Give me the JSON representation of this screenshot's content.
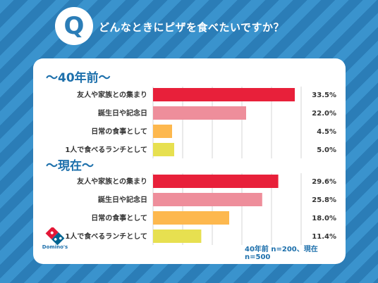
{
  "header": {
    "q_letter": "Q",
    "question": "どんなときにピザを食べたいですか？"
  },
  "sections": [
    {
      "title": "〜40年前〜"
    },
    {
      "title": "〜現在〜"
    }
  ],
  "footnote": "40年前 n=200、現在 n=500",
  "logo": {
    "text": "Domino's",
    "colors": {
      "red": "#e31837",
      "blue": "#006491"
    }
  },
  "colors": {
    "bar_red": "#e8203a",
    "bar_pink": "#ee8e9b",
    "bar_orange": "#fdb84e",
    "bar_yellow": "#e7e050",
    "accent_blue": "#1c6fab"
  },
  "chart_data": [
    {
      "type": "bar",
      "orientation": "horizontal",
      "title": "〜40年前〜",
      "categories": [
        "友人や家族との集まり",
        "誕生日や記念日",
        "日常の食事として",
        "1人で食べるランチとして"
      ],
      "values": [
        33.5,
        22.0,
        4.5,
        5.0
      ],
      "value_labels": [
        "33.5%",
        "22.0%",
        "4.5%",
        "5.0%"
      ],
      "xlim": [
        0,
        35
      ],
      "grid": true
    },
    {
      "type": "bar",
      "orientation": "horizontal",
      "title": "〜現在〜",
      "categories": [
        "友人や家族との集まり",
        "誕生日や記念日",
        "日常の食事として",
        "1人で食べるランチとして"
      ],
      "values": [
        29.6,
        25.8,
        18.0,
        11.4
      ],
      "value_labels": [
        "29.6%",
        "25.8%",
        "18.0%",
        "11.4%"
      ],
      "xlim": [
        0,
        35
      ],
      "grid": true
    }
  ]
}
